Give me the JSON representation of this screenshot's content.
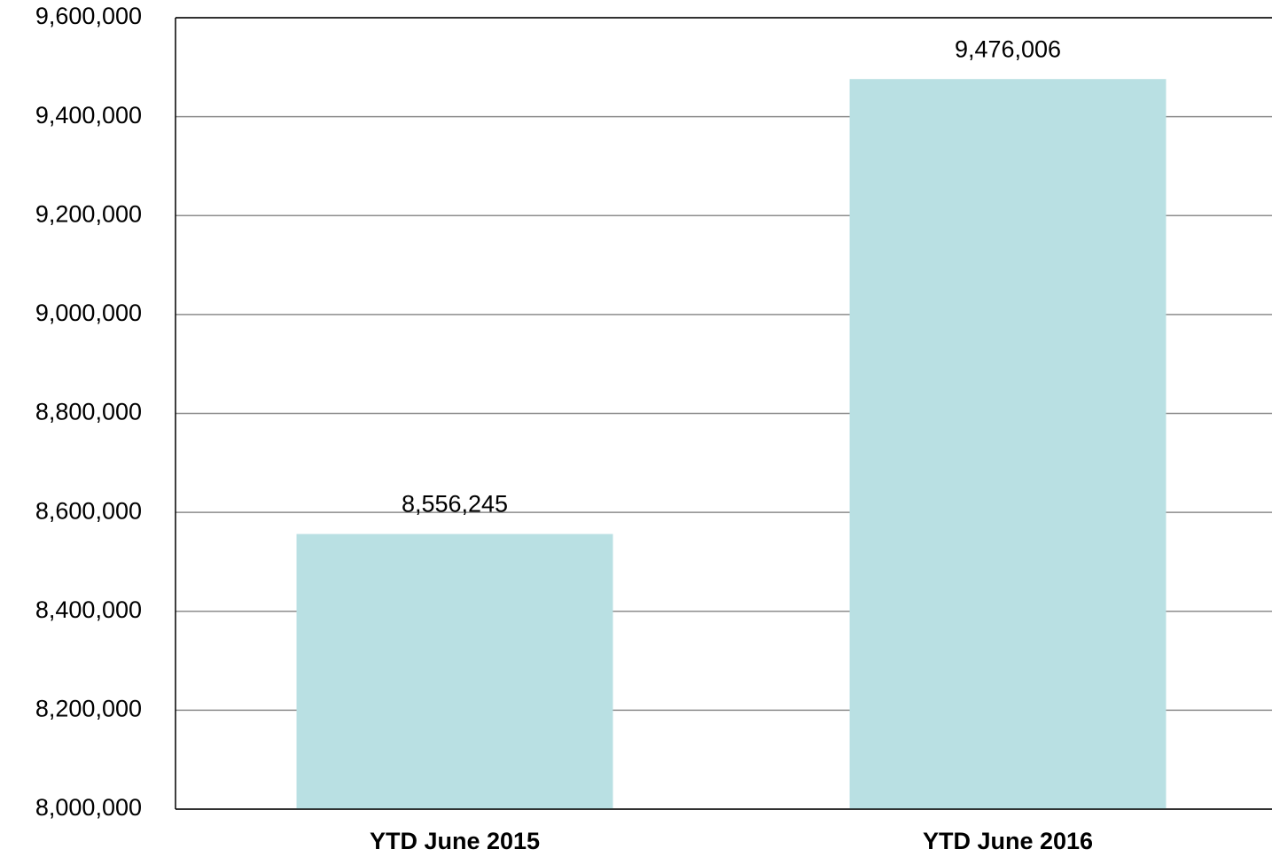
{
  "chart_data": {
    "type": "bar",
    "categories": [
      "YTD June 2015",
      "YTD June 2016"
    ],
    "values": [
      8556245,
      9476006
    ],
    "value_labels": [
      "8,556,245",
      "9,476,006"
    ],
    "color": "#b9e0e3",
    "ylim": [
      8000000,
      9600000
    ],
    "yticks": [
      {
        "value": 8000000,
        "label": "8,000,000"
      },
      {
        "value": 8200000,
        "label": "8,200,000"
      },
      {
        "value": 8400000,
        "label": "8,400,000"
      },
      {
        "value": 8600000,
        "label": "8,600,000"
      },
      {
        "value": 8800000,
        "label": "8,800,000"
      },
      {
        "value": 9000000,
        "label": "9,000,000"
      },
      {
        "value": 9200000,
        "label": "9,200,000"
      },
      {
        "value": 9400000,
        "label": "9,400,000"
      },
      {
        "value": 9600000,
        "label": "9,600,000"
      }
    ],
    "grid": true
  }
}
